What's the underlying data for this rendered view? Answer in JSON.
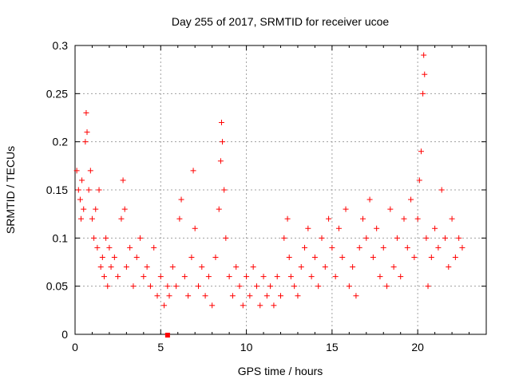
{
  "chart_data": {
    "type": "scatter",
    "title": "Day 255 of 2017, SRMTID for receiver ucoe",
    "xlabel": "GPS time / hours",
    "ylabel": "SRMTID / TECUs",
    "xlim": [
      0,
      24
    ],
    "ylim": [
      0,
      0.3
    ],
    "x_ticks": [
      0,
      5,
      10,
      15,
      20
    ],
    "x_tick_labels": [
      "0",
      "5",
      "10",
      "15",
      "20"
    ],
    "y_ticks": [
      0,
      0.05,
      0.1,
      0.15,
      0.2,
      0.25,
      0.3
    ],
    "y_tick_labels": [
      "0",
      "0.05",
      "0.1",
      "0.15",
      "0.2",
      "0.25",
      "0.3"
    ],
    "grid": true,
    "marker": "+",
    "marker_color": "#ff0000",
    "series": [
      {
        "name": "SRMTID",
        "points": [
          [
            0.1,
            0.17
          ],
          [
            0.2,
            0.15
          ],
          [
            0.3,
            0.14
          ],
          [
            0.35,
            0.12
          ],
          [
            0.4,
            0.16
          ],
          [
            0.5,
            0.13
          ],
          [
            0.6,
            0.2
          ],
          [
            0.65,
            0.23
          ],
          [
            0.7,
            0.21
          ],
          [
            0.8,
            0.15
          ],
          [
            0.9,
            0.17
          ],
          [
            1.0,
            0.12
          ],
          [
            1.1,
            0.1
          ],
          [
            1.2,
            0.13
          ],
          [
            1.3,
            0.09
          ],
          [
            1.4,
            0.15
          ],
          [
            1.5,
            0.07
          ],
          [
            1.6,
            0.08
          ],
          [
            1.7,
            0.06
          ],
          [
            1.8,
            0.1
          ],
          [
            1.9,
            0.05
          ],
          [
            2.0,
            0.09
          ],
          [
            2.1,
            0.07
          ],
          [
            2.3,
            0.08
          ],
          [
            2.5,
            0.06
          ],
          [
            2.7,
            0.12
          ],
          [
            2.8,
            0.16
          ],
          [
            2.9,
            0.13
          ],
          [
            3.0,
            0.07
          ],
          [
            3.2,
            0.09
          ],
          [
            3.4,
            0.05
          ],
          [
            3.6,
            0.08
          ],
          [
            3.8,
            0.1
          ],
          [
            4.0,
            0.06
          ],
          [
            4.2,
            0.07
          ],
          [
            4.4,
            0.05
          ],
          [
            4.6,
            0.09
          ],
          [
            4.8,
            0.04
          ],
          [
            5.0,
            0.06
          ],
          [
            5.2,
            0.03
          ],
          [
            5.4,
            0.05
          ],
          [
            5.5,
            0.04
          ],
          [
            5.7,
            0.07
          ],
          [
            5.9,
            0.05
          ],
          [
            6.1,
            0.12
          ],
          [
            6.2,
            0.14
          ],
          [
            6.4,
            0.06
          ],
          [
            6.6,
            0.04
          ],
          [
            6.8,
            0.08
          ],
          [
            6.9,
            0.17
          ],
          [
            7.0,
            0.11
          ],
          [
            7.2,
            0.05
          ],
          [
            7.4,
            0.07
          ],
          [
            7.6,
            0.04
          ],
          [
            7.8,
            0.06
          ],
          [
            8.0,
            0.03
          ],
          [
            8.2,
            0.08
          ],
          [
            8.4,
            0.13
          ],
          [
            8.5,
            0.18
          ],
          [
            8.55,
            0.22
          ],
          [
            8.6,
            0.2
          ],
          [
            8.7,
            0.15
          ],
          [
            8.8,
            0.1
          ],
          [
            9.0,
            0.06
          ],
          [
            9.2,
            0.04
          ],
          [
            9.4,
            0.07
          ],
          [
            9.6,
            0.05
          ],
          [
            9.8,
            0.03
          ],
          [
            10.0,
            0.06
          ],
          [
            10.2,
            0.04
          ],
          [
            10.4,
            0.07
          ],
          [
            10.6,
            0.05
          ],
          [
            10.8,
            0.03
          ],
          [
            11.0,
            0.06
          ],
          [
            11.2,
            0.04
          ],
          [
            11.4,
            0.05
          ],
          [
            11.6,
            0.03
          ],
          [
            11.8,
            0.06
          ],
          [
            12.0,
            0.04
          ],
          [
            12.2,
            0.1
          ],
          [
            12.4,
            0.12
          ],
          [
            12.5,
            0.08
          ],
          [
            12.6,
            0.06
          ],
          [
            12.8,
            0.05
          ],
          [
            13.0,
            0.04
          ],
          [
            13.2,
            0.07
          ],
          [
            13.4,
            0.09
          ],
          [
            13.6,
            0.11
          ],
          [
            13.8,
            0.06
          ],
          [
            14.0,
            0.08
          ],
          [
            14.2,
            0.05
          ],
          [
            14.4,
            0.1
          ],
          [
            14.6,
            0.07
          ],
          [
            14.8,
            0.12
          ],
          [
            15.0,
            0.09
          ],
          [
            15.2,
            0.06
          ],
          [
            15.4,
            0.11
          ],
          [
            15.6,
            0.08
          ],
          [
            15.8,
            0.13
          ],
          [
            16.0,
            0.05
          ],
          [
            16.2,
            0.07
          ],
          [
            16.4,
            0.04
          ],
          [
            16.6,
            0.09
          ],
          [
            16.8,
            0.12
          ],
          [
            17.0,
            0.1
          ],
          [
            17.2,
            0.14
          ],
          [
            17.4,
            0.08
          ],
          [
            17.6,
            0.11
          ],
          [
            17.8,
            0.06
          ],
          [
            18.0,
            0.09
          ],
          [
            18.2,
            0.05
          ],
          [
            18.4,
            0.13
          ],
          [
            18.6,
            0.07
          ],
          [
            18.8,
            0.1
          ],
          [
            19.0,
            0.06
          ],
          [
            19.2,
            0.12
          ],
          [
            19.4,
            0.09
          ],
          [
            19.6,
            0.14
          ],
          [
            19.8,
            0.08
          ],
          [
            20.0,
            0.12
          ],
          [
            20.1,
            0.16
          ],
          [
            20.2,
            0.19
          ],
          [
            20.3,
            0.25
          ],
          [
            20.35,
            0.29
          ],
          [
            20.4,
            0.27
          ],
          [
            20.5,
            0.1
          ],
          [
            20.6,
            0.05
          ],
          [
            20.8,
            0.08
          ],
          [
            21.0,
            0.11
          ],
          [
            21.2,
            0.09
          ],
          [
            21.4,
            0.15
          ],
          [
            21.6,
            0.1
          ],
          [
            21.8,
            0.07
          ],
          [
            22.0,
            0.12
          ],
          [
            22.2,
            0.08
          ],
          [
            22.4,
            0.1
          ],
          [
            22.6,
            0.09
          ]
        ]
      }
    ],
    "annotations": [
      {
        "type": "square-marker",
        "x": 5.4,
        "y": 0,
        "color": "#ff0000"
      }
    ]
  }
}
